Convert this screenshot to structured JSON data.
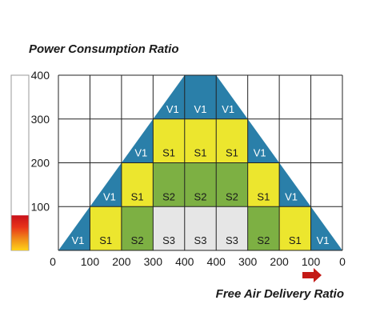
{
  "chart_data": {
    "type": "heatmap",
    "title": "Power Consumption Ratio",
    "xlabel": "Free Air Delivery Ratio",
    "ylabel": "",
    "x_tick_labels": [
      "0",
      "100",
      "200",
      "300",
      "400",
      "400",
      "300",
      "200",
      "100",
      "0"
    ],
    "y_tick_labels": [
      "100",
      "200",
      "300",
      "400"
    ],
    "ylim": [
      0,
      400
    ],
    "columns": 9,
    "rows": 4,
    "cells": [
      {
        "row": 0,
        "col": 0,
        "label": "V1",
        "kind": "V1"
      },
      {
        "row": 0,
        "col": 1,
        "label": "S1",
        "kind": "S1"
      },
      {
        "row": 0,
        "col": 2,
        "label": "S2",
        "kind": "S2"
      },
      {
        "row": 0,
        "col": 3,
        "label": "S3",
        "kind": "S3"
      },
      {
        "row": 0,
        "col": 4,
        "label": "S3",
        "kind": "S3"
      },
      {
        "row": 0,
        "col": 5,
        "label": "S3",
        "kind": "S3"
      },
      {
        "row": 0,
        "col": 6,
        "label": "S2",
        "kind": "S2"
      },
      {
        "row": 0,
        "col": 7,
        "label": "S1",
        "kind": "S1"
      },
      {
        "row": 0,
        "col": 8,
        "label": "V1",
        "kind": "V1"
      },
      {
        "row": 1,
        "col": 1,
        "label": "V1",
        "kind": "V1"
      },
      {
        "row": 1,
        "col": 2,
        "label": "S1",
        "kind": "S1"
      },
      {
        "row": 1,
        "col": 3,
        "label": "S2",
        "kind": "S2"
      },
      {
        "row": 1,
        "col": 4,
        "label": "S2",
        "kind": "S2"
      },
      {
        "row": 1,
        "col": 5,
        "label": "S2",
        "kind": "S2"
      },
      {
        "row": 1,
        "col": 6,
        "label": "S1",
        "kind": "S1"
      },
      {
        "row": 1,
        "col": 7,
        "label": "V1",
        "kind": "V1"
      },
      {
        "row": 2,
        "col": 2,
        "label": "V1",
        "kind": "V1"
      },
      {
        "row": 2,
        "col": 3,
        "label": "S1",
        "kind": "S1"
      },
      {
        "row": 2,
        "col": 4,
        "label": "S1",
        "kind": "S1"
      },
      {
        "row": 2,
        "col": 5,
        "label": "S1",
        "kind": "S1"
      },
      {
        "row": 2,
        "col": 6,
        "label": "V1",
        "kind": "V1"
      },
      {
        "row": 3,
        "col": 3,
        "label": "V1",
        "kind": "V1"
      },
      {
        "row": 3,
        "col": 4,
        "label": "V1",
        "kind": "V1"
      },
      {
        "row": 3,
        "col": 5,
        "label": "V1",
        "kind": "V1"
      }
    ],
    "colors": {
      "V1": "#2a7fa9",
      "S1": "#ece62e",
      "S2": "#7db043",
      "S3": "#e6e6e6"
    },
    "scale_bar_fill_ratio": 0.2,
    "scale_bar_gradient": [
      "#ffd21a",
      "#f08a1a",
      "#e8331a",
      "#c8101a"
    ],
    "arrow_color": "#c41a16",
    "grid": true
  }
}
